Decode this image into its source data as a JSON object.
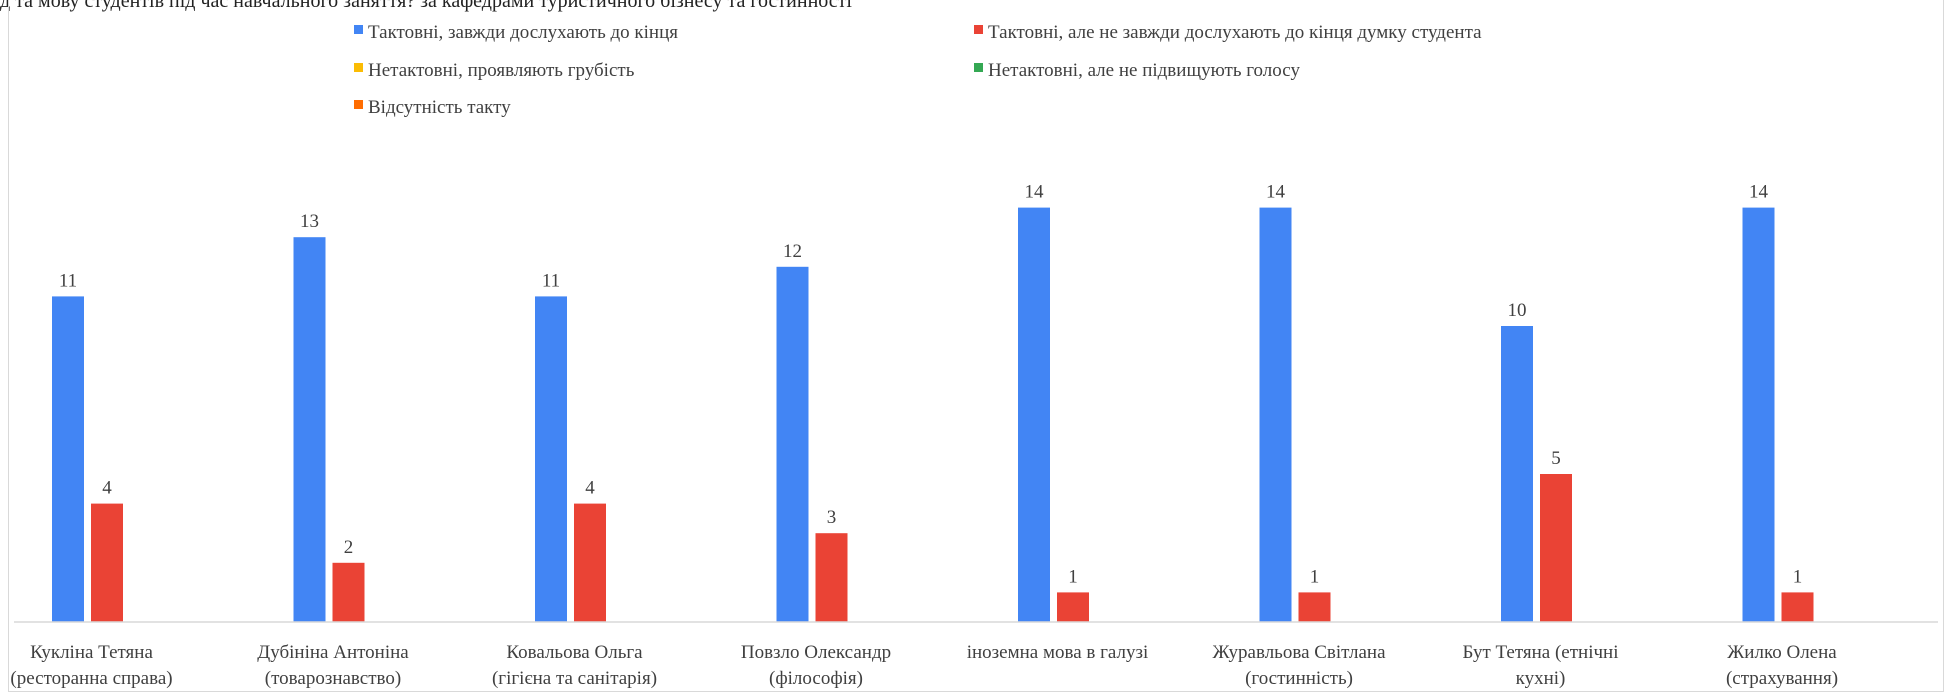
{
  "caption": "д та мову студентів під час навчального заняття? за кафедрами туристичного бізнесу та гостинності",
  "chart_data": {
    "type": "bar",
    "legend_position": "top",
    "grid": false,
    "ylim": [
      0,
      16
    ],
    "categories": [
      [
        "Кукліна Тетяна",
        "(ресторанна справа)"
      ],
      [
        "Дубініна Антоніна",
        "(товарознавство)"
      ],
      [
        "Ковальова Ольга",
        "(гігієна та санітарія)"
      ],
      [
        "Повзло Олександр",
        "(філософія)"
      ],
      [
        "іноземна мова в галузі"
      ],
      [
        "Журавльова Світлана",
        "(гостинність)"
      ],
      [
        "Бут Тетяна (етнічні",
        "кухні)"
      ],
      [
        "Жилко Олена",
        "(страхування)"
      ]
    ],
    "series": [
      {
        "name": "Тактовні, завжди дослухають до кінця",
        "color": "#4285f4",
        "values": [
          11,
          13,
          11,
          12,
          14,
          14,
          10,
          14
        ]
      },
      {
        "name": "Тактовні, але не завжди дослухають до кінця думку студента",
        "color": "#ea4335",
        "values": [
          4,
          2,
          4,
          3,
          1,
          1,
          5,
          1
        ]
      },
      {
        "name": "Нетактовні, проявляють грубість",
        "color": "#fbbc04",
        "values": [
          0,
          0,
          0,
          0,
          0,
          0,
          0,
          0
        ]
      },
      {
        "name": "Нетактовні, але не підвищують голосу",
        "color": "#34a853",
        "values": [
          0,
          0,
          0,
          0,
          0,
          0,
          0,
          0
        ]
      },
      {
        "name": "Відсутність такту",
        "color": "#ff6d01",
        "values": [
          0,
          0,
          0,
          0,
          0,
          0,
          0,
          0
        ]
      }
    ]
  }
}
